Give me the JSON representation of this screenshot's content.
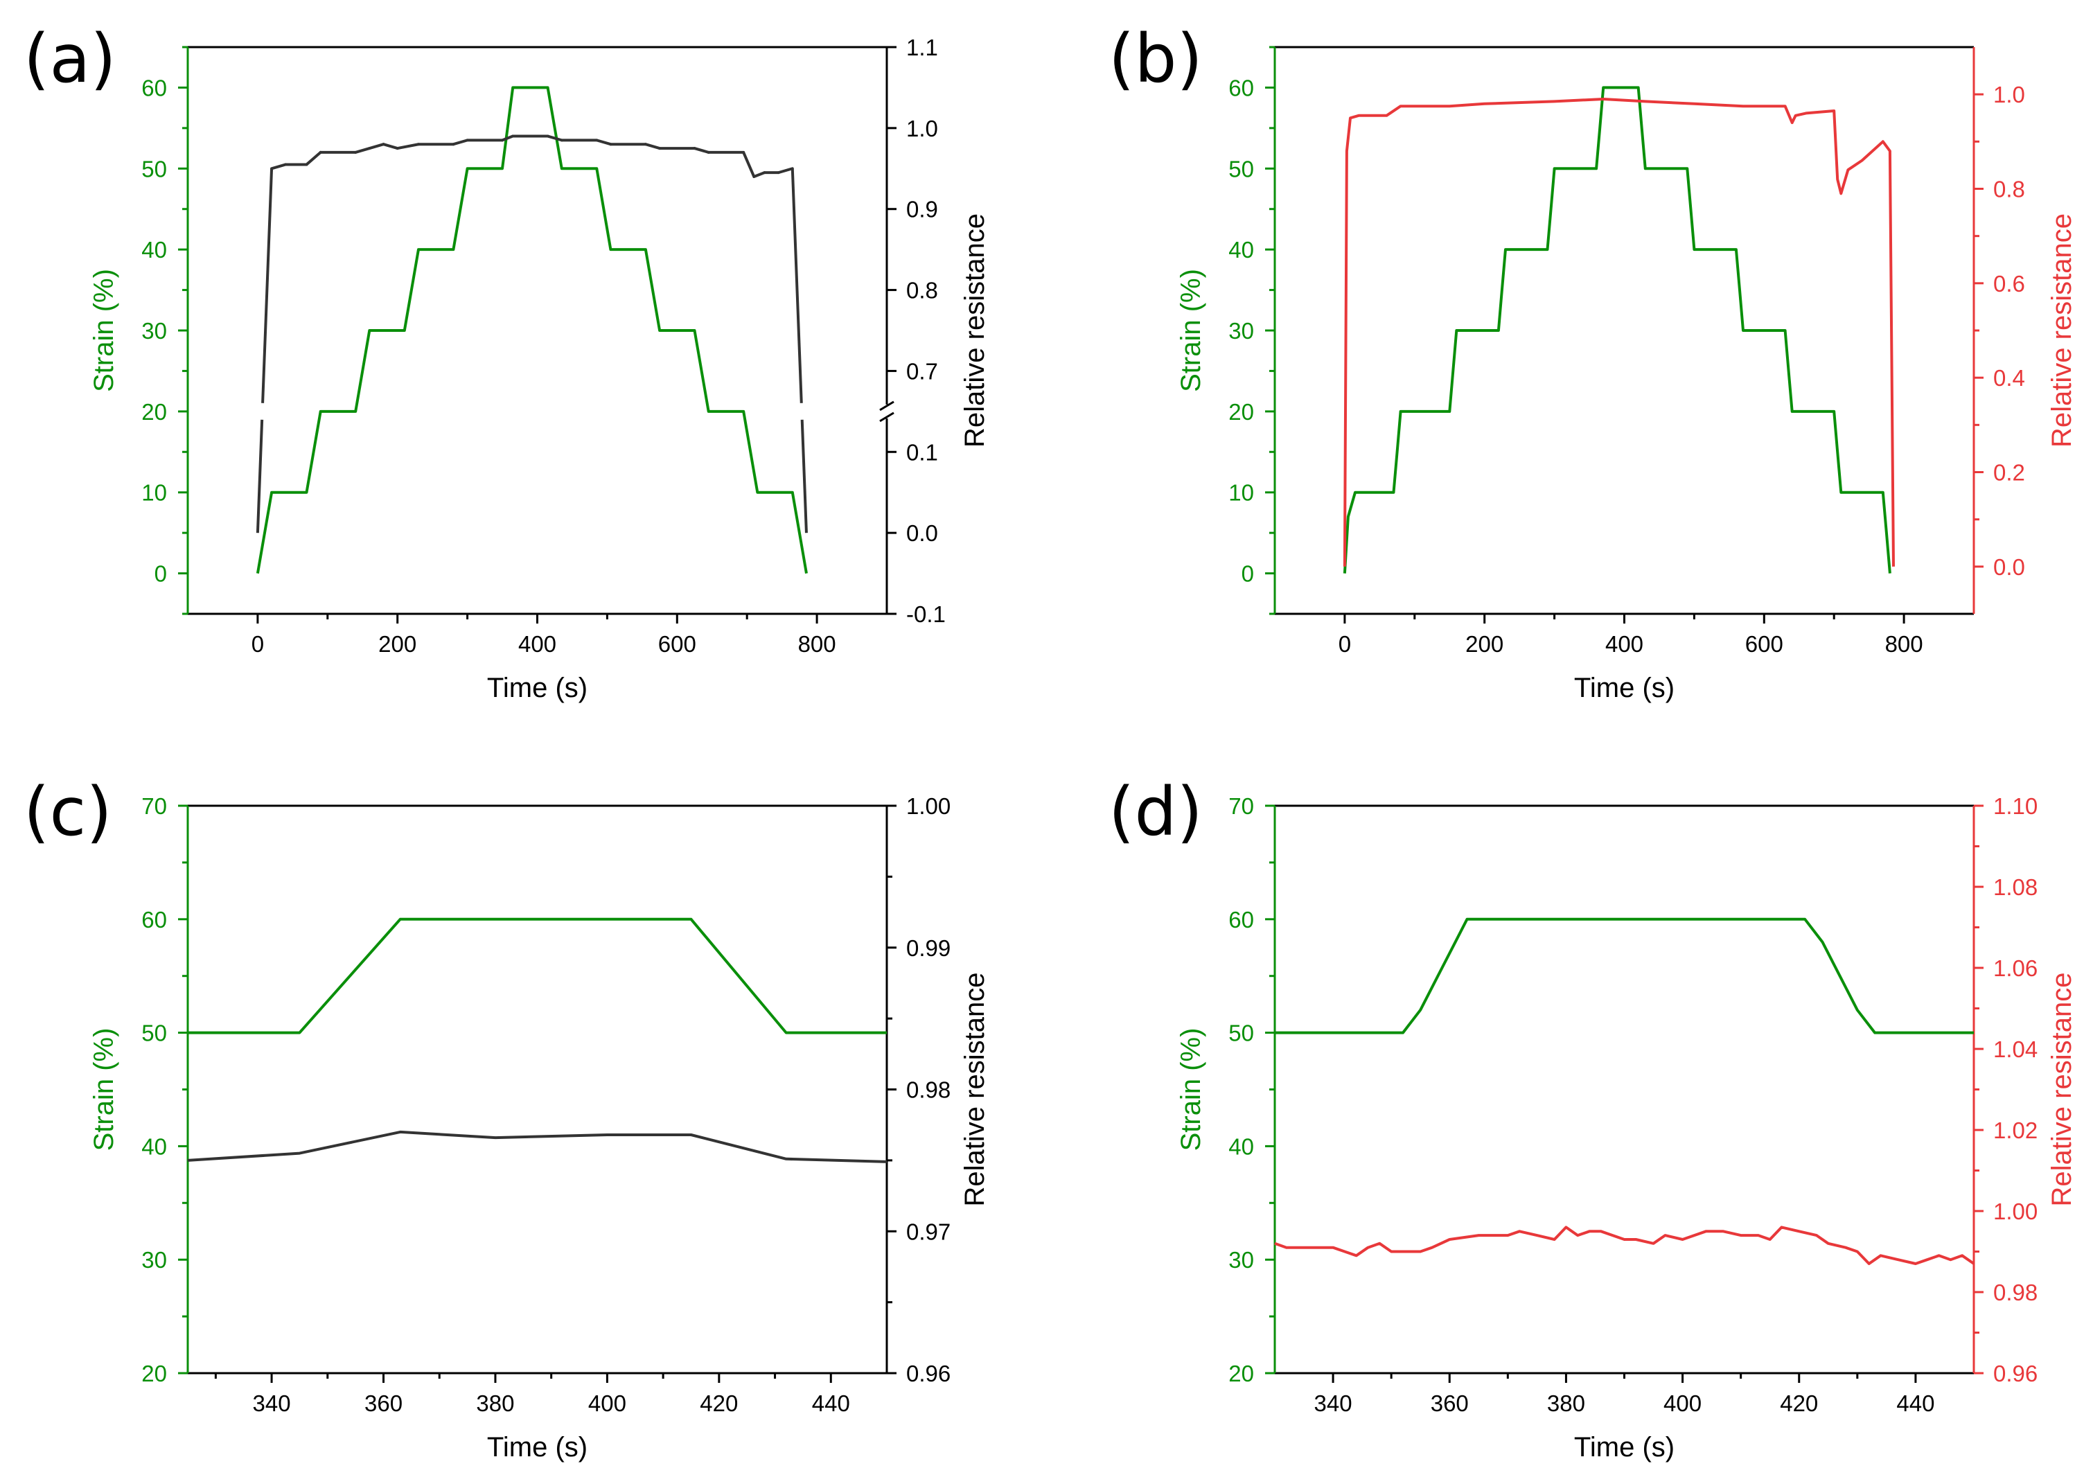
{
  "colors": {
    "strain": "#0a8f0a",
    "resistance_black": "#333333",
    "resistance_red": "#e8383a",
    "frame": "#000000"
  },
  "chart_data": [
    {
      "panel": "(a)",
      "type": "line",
      "xlabel": "Time (s)",
      "ylabel_left": "Strain (%)",
      "ylabel_right": "Relative resistance",
      "xlim": [
        -100,
        900
      ],
      "xticks": [
        0,
        200,
        400,
        600,
        800
      ],
      "ylim_left": [
        -5,
        65
      ],
      "yticks_left": [
        0,
        10,
        20,
        30,
        40,
        50,
        60
      ],
      "right_axis_broken": true,
      "right_ticks": [
        {
          "label": "-0.1",
          "strain_pos": -5
        },
        {
          "label": "0.0",
          "strain_pos": 5
        },
        {
          "label": "0.1",
          "strain_pos": 15
        },
        {
          "label": "0.7",
          "strain_pos": 25
        },
        {
          "label": "0.8",
          "strain_pos": 35
        },
        {
          "label": "0.9",
          "strain_pos": 45
        },
        {
          "label": "1.0",
          "strain_pos": 55
        },
        {
          "label": "1.1",
          "strain_pos": 65
        }
      ],
      "series": [
        {
          "name": "Strain",
          "axis": "left",
          "color_key": "strain",
          "x": [
            0,
            20,
            70,
            90,
            140,
            160,
            210,
            230,
            280,
            300,
            350,
            365,
            415,
            435,
            485,
            505,
            555,
            575,
            625,
            645,
            695,
            715,
            765,
            785
          ],
          "y": [
            0,
            10,
            10,
            20,
            20,
            30,
            30,
            40,
            40,
            50,
            50,
            60,
            60,
            50,
            50,
            40,
            40,
            30,
            30,
            20,
            20,
            10,
            10,
            0
          ]
        },
        {
          "name": "Relative resistance",
          "axis": "right",
          "color_key": "resistance_black",
          "broken_segments": true,
          "x": [
            0,
            20,
            40,
            70,
            90,
            140,
            160,
            180,
            200,
            230,
            280,
            300,
            350,
            365,
            415,
            435,
            485,
            505,
            555,
            575,
            625,
            645,
            695,
            710,
            725,
            745,
            765,
            785
          ],
          "y": [
            0.0,
            0.95,
            0.955,
            0.955,
            0.97,
            0.97,
            0.975,
            0.98,
            0.975,
            0.98,
            0.98,
            0.985,
            0.985,
            0.99,
            0.99,
            0.985,
            0.985,
            0.98,
            0.98,
            0.975,
            0.975,
            0.97,
            0.97,
            0.94,
            0.945,
            0.945,
            0.95,
            0.0
          ]
        }
      ]
    },
    {
      "panel": "(b)",
      "type": "line",
      "xlabel": "Time (s)",
      "ylabel_left": "Strain (%)",
      "ylabel_right": "Relative resistance",
      "xlim": [
        -100,
        900
      ],
      "xticks": [
        0,
        200,
        400,
        600,
        800
      ],
      "ylim_left": [
        -5,
        65
      ],
      "yticks_left": [
        0,
        10,
        20,
        30,
        40,
        50,
        60
      ],
      "ylim_right": [
        -0.1,
        1.1
      ],
      "yticks_right": [
        0.0,
        0.2,
        0.4,
        0.6,
        0.8,
        1.0
      ],
      "ytick_right_labels": [
        "0.0",
        "0.2",
        "0.4",
        "0.6",
        "0.8",
        "1.0"
      ],
      "series": [
        {
          "name": "Strain",
          "axis": "left",
          "color_key": "strain",
          "x": [
            0,
            5,
            15,
            70,
            75,
            80,
            150,
            155,
            160,
            220,
            225,
            230,
            290,
            295,
            300,
            360,
            365,
            370,
            420,
            425,
            430,
            490,
            495,
            500,
            560,
            565,
            570,
            630,
            635,
            640,
            700,
            705,
            710,
            770,
            775,
            780
          ],
          "y": [
            0,
            7,
            10,
            10,
            15,
            20,
            20,
            25,
            30,
            30,
            35,
            40,
            40,
            45,
            50,
            50,
            55,
            60,
            60,
            55,
            50,
            50,
            45,
            40,
            40,
            35,
            30,
            30,
            25,
            20,
            20,
            15,
            10,
            10,
            5,
            0
          ]
        },
        {
          "name": "Relative resistance",
          "axis": "right",
          "color_key": "resistance_red",
          "x": [
            0,
            3,
            8,
            20,
            60,
            80,
            150,
            200,
            300,
            370,
            430,
            500,
            570,
            630,
            640,
            645,
            660,
            700,
            705,
            710,
            720,
            740,
            770,
            780,
            785
          ],
          "y": [
            0.0,
            0.88,
            0.95,
            0.955,
            0.955,
            0.975,
            0.975,
            0.98,
            0.985,
            0.99,
            0.985,
            0.98,
            0.975,
            0.975,
            0.94,
            0.955,
            0.96,
            0.965,
            0.82,
            0.79,
            0.84,
            0.86,
            0.9,
            0.88,
            0.0
          ]
        }
      ]
    },
    {
      "panel": "(c)",
      "type": "line",
      "xlabel": "Time (s)",
      "ylabel_left": "Strain (%)",
      "ylabel_right": "Relative resistance",
      "xlim": [
        325,
        450
      ],
      "xticks": [
        340,
        360,
        380,
        400,
        420,
        440
      ],
      "ylim_left": [
        20,
        70
      ],
      "yticks_left": [
        20,
        30,
        40,
        50,
        60,
        70
      ],
      "ylim_right": [
        0.96,
        1.0
      ],
      "yticks_right": [
        0.96,
        0.97,
        0.98,
        0.99,
        1.0
      ],
      "ytick_right_labels": [
        "0.96",
        "0.97",
        "0.98",
        "0.99",
        "1.00"
      ],
      "series": [
        {
          "name": "Strain",
          "axis": "left",
          "color_key": "strain",
          "x": [
            325,
            345,
            363,
            415,
            432,
            450
          ],
          "y": [
            50,
            50,
            60,
            60,
            50,
            50
          ]
        },
        {
          "name": "Relative resistance",
          "axis": "right",
          "color_key": "resistance_black",
          "x": [
            325,
            345,
            363,
            380,
            400,
            415,
            432,
            450
          ],
          "y": [
            0.975,
            0.9755,
            0.977,
            0.9766,
            0.9768,
            0.9768,
            0.9751,
            0.9749
          ]
        }
      ]
    },
    {
      "panel": "(d)",
      "type": "line",
      "xlabel": "Time (s)",
      "ylabel_left": "Strain (%)",
      "ylabel_right": "Relative resistance",
      "xlim": [
        330,
        450
      ],
      "xticks": [
        340,
        360,
        380,
        400,
        420,
        440
      ],
      "ylim_left": [
        20,
        70
      ],
      "yticks_left": [
        20,
        30,
        40,
        50,
        60,
        70
      ],
      "ylim_right": [
        0.96,
        1.1
      ],
      "yticks_right": [
        0.96,
        0.98,
        1.0,
        1.02,
        1.04,
        1.06,
        1.08,
        1.1
      ],
      "ytick_right_labels": [
        "0.96",
        "0.98",
        "1.00",
        "1.02",
        "1.04",
        "1.06",
        "1.08",
        "1.10"
      ],
      "series": [
        {
          "name": "Strain",
          "axis": "left",
          "color_key": "strain",
          "x": [
            330,
            352,
            355,
            358,
            361,
            363,
            421,
            424,
            427,
            430,
            433,
            450
          ],
          "y": [
            50,
            50,
            52,
            55,
            58,
            60,
            60,
            58,
            55,
            52,
            50,
            50
          ]
        },
        {
          "name": "Relative resistance",
          "axis": "right",
          "color_key": "resistance_red",
          "x": [
            330,
            332,
            335,
            340,
            342,
            344,
            346,
            348,
            350,
            355,
            357,
            360,
            365,
            370,
            372,
            375,
            378,
            380,
            382,
            384,
            386,
            390,
            392,
            395,
            397,
            400,
            404,
            407,
            410,
            413,
            415,
            417,
            420,
            423,
            425,
            428,
            430,
            432,
            434,
            437,
            440,
            442,
            444,
            446,
            448,
            450
          ],
          "y": [
            0.992,
            0.991,
            0.991,
            0.991,
            0.99,
            0.989,
            0.991,
            0.992,
            0.99,
            0.99,
            0.991,
            0.993,
            0.994,
            0.994,
            0.995,
            0.994,
            0.993,
            0.996,
            0.994,
            0.995,
            0.995,
            0.993,
            0.993,
            0.992,
            0.994,
            0.993,
            0.995,
            0.995,
            0.994,
            0.994,
            0.993,
            0.996,
            0.995,
            0.994,
            0.992,
            0.991,
            0.99,
            0.987,
            0.989,
            0.988,
            0.987,
            0.988,
            0.989,
            0.988,
            0.989,
            0.987
          ]
        }
      ]
    }
  ]
}
